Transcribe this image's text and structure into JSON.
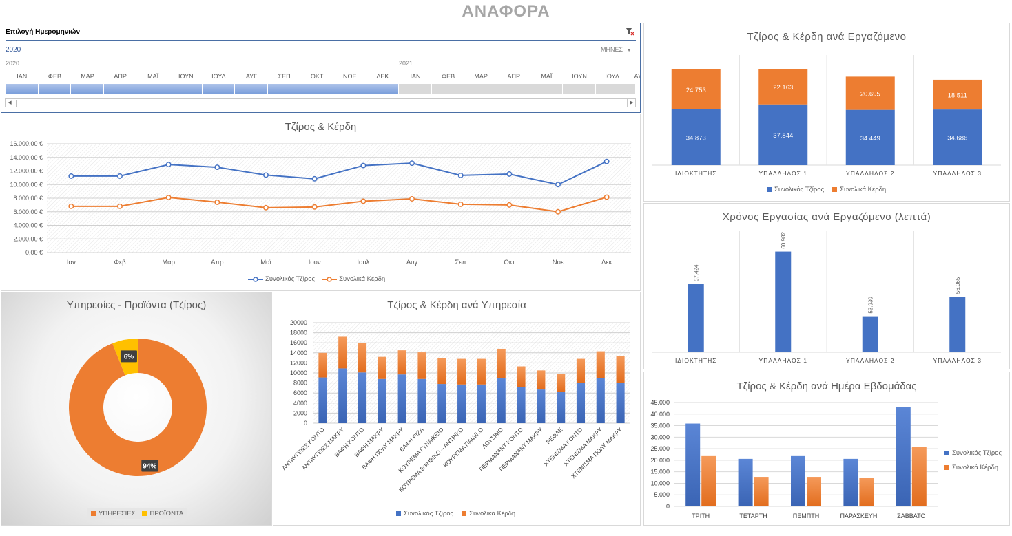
{
  "title": "ΑΝΑΦΟΡΑ",
  "colors": {
    "blue": "#4472c4",
    "orange": "#ed7d31",
    "yellow": "#ffc000",
    "grid": "#d9d9d9"
  },
  "timeline": {
    "header": "Επιλογή Ημερομηνιών",
    "selected_year": "2020",
    "period_label": "ΜΗΝΕΣ",
    "years": [
      "2020",
      "2021"
    ],
    "months_2020": [
      "ΙΑΝ",
      "ΦΕΒ",
      "ΜΑΡ",
      "ΑΠΡ",
      "ΜΑΪ",
      "ΙΟΥΝ",
      "ΙΟΥΛ",
      "ΑΥΓ",
      "ΣΕΠ",
      "ΟΚΤ",
      "ΝΟΕ",
      "ΔΕΚ"
    ],
    "months_2021": [
      "ΙΑΝ",
      "ΦΕΒ",
      "ΜΑΡ",
      "ΑΠΡ",
      "ΜΑΪ",
      "ΙΟΥΝ",
      "ΙΟΥΛ",
      "ΑΥ"
    ],
    "clear_filter_icon": "filter-clear-icon"
  },
  "chart_data": [
    {
      "id": "line",
      "type": "line",
      "title": "Τζίρος & Κέρδη",
      "categories": [
        "Ιαν",
        "Φεβ",
        "Μαρ",
        "Απρ",
        "Μαϊ",
        "Ιουν",
        "Ιουλ",
        "Αυγ",
        "Σεπ",
        "Οκτ",
        "Νοε",
        "Δεκ"
      ],
      "series": [
        {
          "name": "Συνολικός Τζίρος",
          "values": [
            11250,
            11250,
            12950,
            12550,
            11400,
            10850,
            12800,
            13150,
            11350,
            11550,
            10000,
            13400
          ]
        },
        {
          "name": "Συνολικά Κέρδη",
          "values": [
            6800,
            6800,
            8100,
            7400,
            6600,
            6700,
            7550,
            7900,
            7100,
            7000,
            6000,
            8150
          ]
        }
      ],
      "yticks": [
        "0,00 €",
        "2.000,00 €",
        "4.000,00 €",
        "6.000,00 €",
        "8.000,00 €",
        "10.000,00 €",
        "12.000,00 €",
        "14.000,00 €",
        "16.000,00 €"
      ],
      "ylim": [
        0,
        16000
      ]
    },
    {
      "id": "donut",
      "type": "pie",
      "title": "Υπηρεσίες - Προϊόντα (Τζίρος)",
      "categories": [
        "ΥΠΗΡΕΣΙΕΣ",
        "ΠΡΟΪΟΝΤΑ"
      ],
      "values": [
        94,
        6
      ],
      "labels": [
        "94%",
        "6%"
      ]
    },
    {
      "id": "services",
      "type": "bar",
      "title": "Τζίρος & Κέρδη ανά Υπηρεσία",
      "categories": [
        "ΑΝΤΑΥΓΕΙΕΣ ΚΟΝΤΟ",
        "ΑΝΤΑΥΓΕΙΕΣ ΜΑΚΡΥ",
        "ΒΑΦΗ ΚΟΝΤΟ",
        "ΒΑΦΗ ΜΑΚΡΥ",
        "ΒΑΦΗ ΠΟΛΥ ΜΑΚΡΥ",
        "ΒΑΦΗ ΡΙΖΑ",
        "ΚΟΥΡΕΜΑ ΓΥΝΑΙΚΕΙΟ",
        "ΚΟΥΡΕΜΑ ΕΦΗΒΙΚΟ – ΑΝΤΡΙΚΟ",
        "ΚΟΥΡΕΜΑ ΠΑΙΔΙΚΟ",
        "ΛΟΥΣΙΜΟ",
        "ΠΕΡΜΑΝΑΝΤ ΚΟΝΤΟ",
        "ΠΕΡΜΑΝΑΝΤ ΜΑΚΡΥ",
        "ΡΕΦΛΕ",
        "ΧΤΕΝΙΣΜΑ ΚΟΝΤΟ",
        "ΧΤΕΝΙΣΜΑ ΜΑΚΡΥ",
        "ΧΤΕΝΙΣΜΑ ΠΟΛΥ ΜΑΚΡΥ"
      ],
      "series": [
        {
          "name": "Συνολικός Τζίρος",
          "values": [
            9100,
            10900,
            10100,
            8800,
            9700,
            8800,
            7800,
            7700,
            7700,
            8900,
            7200,
            6700,
            6300,
            8000,
            9000,
            8000
          ]
        },
        {
          "name": "Συνολικά Κέρδη",
          "values": [
            4900,
            6300,
            5900,
            4400,
            4800,
            5300,
            5200,
            5100,
            5100,
            5900,
            4100,
            3800,
            3500,
            4800,
            5300,
            5400
          ]
        }
      ],
      "yticks": [
        "0",
        "2000",
        "4000",
        "6000",
        "8000",
        "10000",
        "12000",
        "14000",
        "16000",
        "18000",
        "20000"
      ],
      "ylim": [
        0,
        20000
      ]
    },
    {
      "id": "employees",
      "type": "bar",
      "title": "Τζίρος & Κέρδη ανά Εργαζόμενο",
      "categories": [
        "ΙΔΙΟΚΤΗΤΗΣ",
        "ΥΠΑΛΛΗΛΟΣ 1",
        "ΥΠΑΛΛΗΛΟΣ 2",
        "ΥΠΑΛΛΗΛΟΣ 3"
      ],
      "series": [
        {
          "name": "Συνολικός Τζίρος",
          "values": [
            34873,
            37844,
            34449,
            34686
          ],
          "labels": [
            "34.873",
            "37.844",
            "34.449",
            "34.686"
          ]
        },
        {
          "name": "Συνολικά Κέρδη",
          "values": [
            24753,
            22163,
            20695,
            18511
          ],
          "labels": [
            "24.753",
            "22.163",
            "20.695",
            "18.511"
          ]
        }
      ]
    },
    {
      "id": "worktime",
      "type": "bar",
      "title": "Χρόνος Εργασίας ανά Εργαζόμενο (λεπτά)",
      "categories": [
        "ΙΔΙΟΚΤΗΤΗΣ",
        "ΥΠΑΛΛΗΛΟΣ 1",
        "ΥΠΑΛΛΗΛΟΣ 2",
        "ΥΠΑΛΛΗΛΟΣ 3"
      ],
      "values": [
        57424,
        60982,
        53930,
        56065
      ],
      "labels": [
        "57.424",
        "60.982",
        "53.930",
        "56.065"
      ]
    },
    {
      "id": "weekday",
      "type": "bar",
      "title": "Τζίρος & Κέρδη ανά Ημέρα Εβδομάδας",
      "categories": [
        "ΤΡΙΤΗ",
        "ΤΕΤΑΡΤΗ",
        "ΠΕΜΠΤΗ",
        "ΠΑΡΑΣΚΕΥΗ",
        "ΣΑΒΒΑΤΟ"
      ],
      "series": [
        {
          "name": "Συνολικός Τζίρος",
          "values": [
            35900,
            20600,
            21800,
            20600,
            43000
          ]
        },
        {
          "name": "Συνολικά Κέρδη",
          "values": [
            21800,
            12800,
            12800,
            12500,
            25900
          ]
        }
      ],
      "yticks": [
        "0",
        "5.000",
        "10.000",
        "15.000",
        "20.000",
        "25.000",
        "30.000",
        "35.000",
        "40.000",
        "45.000"
      ],
      "ylim": [
        0,
        45000
      ]
    }
  ]
}
